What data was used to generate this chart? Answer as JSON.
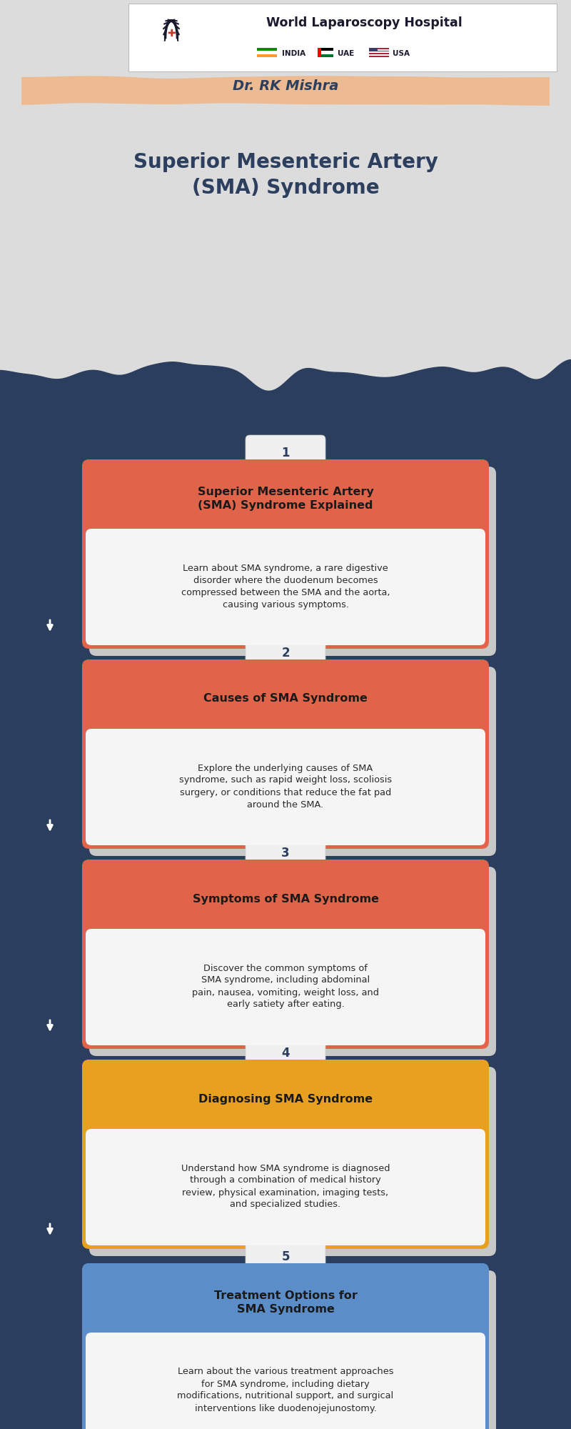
{
  "title": "Superior Mesenteric Artery\n(SMA) Syndrome",
  "subtitle": "Dr. RK Mishra",
  "hospital_name": "World Laparoscopy Hospital",
  "hospital_line2": "INDIA   UAE   USA",
  "bg_dark": "#2c3e5e",
  "bg_light": "#e8e8e8",
  "subtitle_bg": "#f0b88a",
  "steps": [
    {
      "number": "1",
      "header": "Superior Mesenteric Artery\n(SMA) Syndrome Explained",
      "body": "Learn about SMA syndrome, a rare digestive\ndisorder where the duodenum becomes\ncompressed between the SMA and the aorta,\ncausing various symptoms.",
      "color": "#e0644a"
    },
    {
      "number": "2",
      "header": "Causes of SMA Syndrome",
      "body": "Explore the underlying causes of SMA\nsyndrome, such as rapid weight loss, scoliosis\nsurgery, or conditions that reduce the fat pad\naround the SMA.",
      "color": "#e0644a"
    },
    {
      "number": "3",
      "header": "Symptoms of SMA Syndrome",
      "body": "Discover the common symptoms of\nSMA syndrome, including abdominal\npain, nausea, vomiting, weight loss, and\nearly satiety after eating.",
      "color": "#e0644a"
    },
    {
      "number": "4",
      "header": "Diagnosing SMA Syndrome",
      "body": "Understand how SMA syndrome is diagnosed\nthrough a combination of medical history\nreview, physical examination, imaging tests,\nand specialized studies.",
      "color": "#e8a020"
    },
    {
      "number": "5",
      "header": "Treatment Options for\nSMA Syndrome",
      "body": "Learn about the various treatment approaches\nfor SMA syndrome, including dietary\nmodifications, nutritional support, and surgical\ninterventions like duodenojejunostomy.",
      "color": "#5b8dc9"
    }
  ]
}
